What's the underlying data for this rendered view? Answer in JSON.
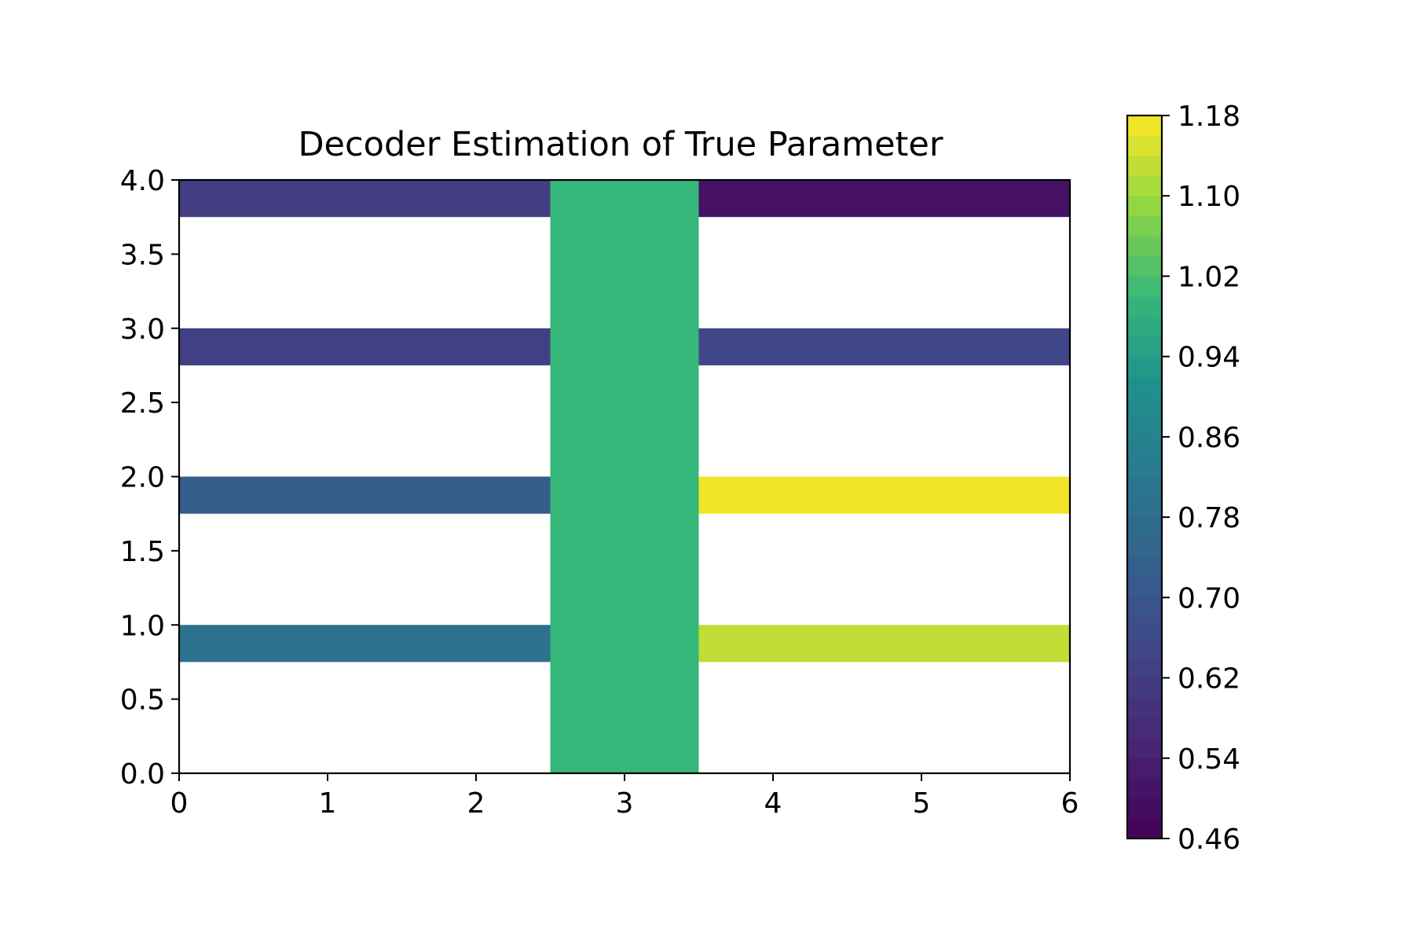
{
  "chart_data": {
    "type": "heatmap",
    "title": "Decoder Estimation of True Parameter",
    "xlabel": "",
    "ylabel": "",
    "xlim": [
      0,
      6
    ],
    "ylim": [
      0,
      4
    ],
    "x_ticks": [
      "0",
      "1",
      "2",
      "3",
      "4",
      "5",
      "6"
    ],
    "y_ticks": [
      "0.0",
      "0.5",
      "1.0",
      "1.5",
      "2.0",
      "2.5",
      "3.0",
      "3.5",
      "4.0"
    ],
    "colorbar": {
      "colormap": "viridis",
      "range": [
        0.46,
        1.18
      ],
      "ticks": [
        "0.46",
        "0.54",
        "0.62",
        "0.70",
        "0.78",
        "0.86",
        "0.94",
        "1.02",
        "1.10",
        "1.18"
      ]
    },
    "regions": [
      {
        "x": [
          2.5,
          3.5
        ],
        "y": [
          0.0,
          4.0
        ],
        "value": 1.0
      },
      {
        "x": [
          0.0,
          2.5
        ],
        "y": [
          3.75,
          4.0
        ],
        "value": 0.62
      },
      {
        "x": [
          3.5,
          6.0
        ],
        "y": [
          3.75,
          4.0
        ],
        "value": 0.5
      },
      {
        "x": [
          0.0,
          2.5
        ],
        "y": [
          2.75,
          3.0
        ],
        "value": 0.63
      },
      {
        "x": [
          3.5,
          6.0
        ],
        "y": [
          2.75,
          3.0
        ],
        "value": 0.65
      },
      {
        "x": [
          0.0,
          2.5
        ],
        "y": [
          1.75,
          2.0
        ],
        "value": 0.72
      },
      {
        "x": [
          3.5,
          6.0
        ],
        "y": [
          1.75,
          2.0
        ],
        "value": 1.17
      },
      {
        "x": [
          0.0,
          2.5
        ],
        "y": [
          0.75,
          1.0
        ],
        "value": 0.8
      },
      {
        "x": [
          3.5,
          6.0
        ],
        "y": [
          0.75,
          1.0
        ],
        "value": 1.13
      }
    ]
  }
}
